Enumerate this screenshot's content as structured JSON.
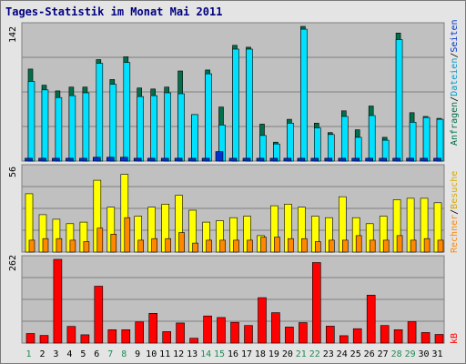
{
  "title": "Tages-Statistik im Monat Mai 2011",
  "colors": {
    "anfragen": "#006f4c",
    "dateien": "#00e0ff",
    "seiten": "#0033cc",
    "besuche": "#ffff00",
    "rechner": "#ff8800",
    "kb": "#ff0000",
    "panel_bg": "#c0c0c0",
    "weekend_label": "#228b57",
    "weekday_label": "#000000"
  },
  "chart_data": [
    {
      "type": "bar",
      "ymax_label": "142",
      "ylim": [
        0,
        142
      ],
      "grid": true,
      "series": [
        {
          "name": "Anfragen",
          "values": [
            97,
            80,
            74,
            78,
            78,
            107,
            86,
            110,
            77,
            76,
            78,
            95,
            49,
            96,
            57,
            122,
            120,
            39,
            20,
            44,
            142,
            40,
            30,
            53,
            33,
            58,
            25,
            135,
            51,
            47,
            45
          ]
        },
        {
          "name": "Dateien",
          "values": [
            84,
            75,
            67,
            69,
            72,
            103,
            81,
            104,
            68,
            69,
            72,
            71,
            49,
            92,
            38,
            118,
            118,
            27,
            18,
            40,
            139,
            35,
            28,
            47,
            25,
            48,
            22,
            128,
            41,
            46,
            44
          ]
        },
        {
          "name": "Seiten",
          "values": [
            3,
            3,
            3,
            3,
            3,
            4,
            4,
            4,
            3,
            3,
            3,
            3,
            3,
            3,
            10,
            3,
            3,
            3,
            3,
            3,
            3,
            3,
            3,
            3,
            3,
            3,
            3,
            3,
            3,
            3,
            3
          ]
        }
      ]
    },
    {
      "type": "bar",
      "ymax_label": "56",
      "ylim": [
        0,
        56
      ],
      "grid": true,
      "series": [
        {
          "name": "Besuche",
          "values": [
            39,
            25,
            22,
            19,
            20,
            48,
            30,
            52,
            24,
            30,
            32,
            38,
            28,
            20,
            21,
            23,
            24,
            11,
            31,
            32,
            30,
            24,
            23,
            37,
            23,
            19,
            24,
            35,
            36,
            36,
            33
          ]
        },
        {
          "name": "Rechner",
          "values": [
            8,
            9,
            9,
            8,
            7,
            16,
            12,
            23,
            8,
            9,
            9,
            13,
            6,
            8,
            8,
            8,
            8,
            10,
            10,
            9,
            9,
            7,
            8,
            8,
            11,
            8,
            8,
            11,
            8,
            9,
            8
          ]
        }
      ]
    },
    {
      "type": "bar",
      "ymax_label": "262",
      "ylim": [
        0,
        262
      ],
      "grid": true,
      "series": [
        {
          "name": "kB",
          "values": [
            30,
            24,
            262,
            52,
            26,
            178,
            42,
            42,
            66,
            93,
            36,
            63,
            15,
            85,
            80,
            65,
            55,
            142,
            95,
            50,
            64,
            252,
            53,
            23,
            45,
            150,
            55,
            42,
            67,
            33,
            27
          ]
        }
      ]
    }
  ],
  "days": [
    "1",
    "2",
    "3",
    "4",
    "5",
    "6",
    "7",
    "8",
    "9",
    "10",
    "11",
    "12",
    "13",
    "14",
    "15",
    "16",
    "17",
    "18",
    "19",
    "20",
    "21",
    "22",
    "23",
    "24",
    "25",
    "26",
    "27",
    "28",
    "29",
    "30",
    "31"
  ],
  "weekend_days": [
    1,
    7,
    8,
    14,
    15,
    21,
    22,
    28,
    29
  ],
  "legend": {
    "top": {
      "anfragen": "Anfragen",
      "sep1": "/",
      "dateien": "Dateien",
      "sep2": "/",
      "seiten": "Seiten"
    },
    "middle": {
      "besuche": "Besuche",
      "sep": "/",
      "rechner": "Rechner"
    },
    "bottom": {
      "kb": "kB"
    }
  }
}
